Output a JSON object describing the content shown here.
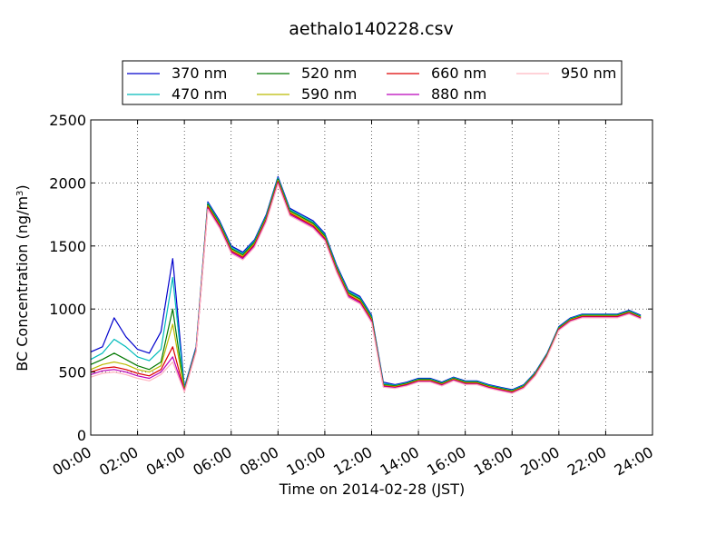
{
  "chart_data": {
    "type": "line",
    "title": "aethalo140228.csv",
    "xlabel": "Time on 2014-02-28 (JST)",
    "ylabel_main": "BC Concentration (ng/m",
    "ylabel_sup": "3",
    "ylabel_close": ")",
    "xlim_hours": [
      0,
      24
    ],
    "ylim": [
      0,
      2500
    ],
    "x_ticks": [
      {
        "hour": 0,
        "label": "00:00"
      },
      {
        "hour": 2,
        "label": "02:00"
      },
      {
        "hour": 4,
        "label": "04:00"
      },
      {
        "hour": 6,
        "label": "06:00"
      },
      {
        "hour": 8,
        "label": "08:00"
      },
      {
        "hour": 10,
        "label": "10:00"
      },
      {
        "hour": 12,
        "label": "12:00"
      },
      {
        "hour": 14,
        "label": "14:00"
      },
      {
        "hour": 16,
        "label": "16:00"
      },
      {
        "hour": 18,
        "label": "18:00"
      },
      {
        "hour": 20,
        "label": "20:00"
      },
      {
        "hour": 22,
        "label": "22:00"
      },
      {
        "hour": 24,
        "label": "24:00"
      }
    ],
    "y_ticks": [
      {
        "value": 0,
        "label": "0"
      },
      {
        "value": 500,
        "label": "500"
      },
      {
        "value": 1000,
        "label": "1000"
      },
      {
        "value": 1500,
        "label": "1500"
      },
      {
        "value": 2000,
        "label": "2000"
      },
      {
        "value": 2500,
        "label": "2500"
      }
    ],
    "grid": true,
    "legend_position": "top",
    "x_hours": [
      0,
      0.5,
      1,
      1.5,
      2,
      2.5,
      3,
      3.5,
      4,
      4.5,
      5,
      5.5,
      6,
      6.5,
      7,
      7.5,
      8,
      8.5,
      9,
      9.5,
      10,
      10.5,
      11,
      11.5,
      12,
      12.5,
      13,
      13.5,
      14,
      14.5,
      15,
      15.5,
      16,
      16.5,
      17,
      17.5,
      18,
      18.5,
      19,
      19.5,
      20,
      20.5,
      21,
      21.5,
      22,
      22.5,
      23,
      23.5
    ],
    "series": [
      {
        "name": "370 nm",
        "color": "#0000cc",
        "values": [
          660,
          700,
          930,
          780,
          680,
          650,
          820,
          1400,
          380,
          700,
          1850,
          1700,
          1500,
          1450,
          1550,
          1750,
          2050,
          1800,
          1750,
          1700,
          1600,
          1350,
          1150,
          1100,
          950,
          420,
          400,
          420,
          450,
          450,
          420,
          460,
          430,
          430,
          400,
          380,
          360,
          400,
          500,
          650,
          860,
          930,
          960,
          960,
          960,
          960,
          990,
          950
        ]
      },
      {
        "name": "470 nm",
        "color": "#00bbbb",
        "values": [
          600,
          650,
          760,
          700,
          620,
          590,
          680,
          1250,
          370,
          690,
          1840,
          1690,
          1490,
          1440,
          1540,
          1740,
          2040,
          1790,
          1740,
          1690,
          1590,
          1340,
          1140,
          1090,
          940,
          410,
          395,
          415,
          445,
          445,
          415,
          455,
          425,
          425,
          395,
          375,
          355,
          395,
          495,
          645,
          855,
          925,
          955,
          955,
          955,
          955,
          985,
          945
        ]
      },
      {
        "name": "520 nm",
        "color": "#007700",
        "values": [
          560,
          600,
          650,
          600,
          550,
          520,
          580,
          1000,
          360,
          680,
          1830,
          1680,
          1480,
          1430,
          1530,
          1730,
          2030,
          1780,
          1730,
          1680,
          1580,
          1330,
          1130,
          1080,
          930,
          400,
          390,
          410,
          440,
          440,
          410,
          450,
          420,
          420,
          390,
          370,
          350,
          390,
          490,
          640,
          850,
          920,
          950,
          950,
          950,
          950,
          980,
          940
        ]
      },
      {
        "name": "590 nm",
        "color": "#bbbb00",
        "values": [
          520,
          560,
          580,
          560,
          520,
          500,
          550,
          880,
          355,
          675,
          1820,
          1670,
          1470,
          1420,
          1520,
          1720,
          2020,
          1770,
          1720,
          1670,
          1570,
          1320,
          1120,
          1070,
          920,
          395,
          385,
          405,
          435,
          435,
          405,
          445,
          415,
          415,
          385,
          365,
          345,
          385,
          485,
          635,
          845,
          915,
          945,
          945,
          945,
          945,
          975,
          935
        ]
      },
      {
        "name": "660 nm",
        "color": "#dd0000",
        "values": [
          500,
          530,
          540,
          520,
          490,
          470,
          520,
          700,
          350,
          670,
          1810,
          1660,
          1460,
          1410,
          1510,
          1710,
          2010,
          1760,
          1710,
          1660,
          1560,
          1310,
          1110,
          1060,
          910,
          390,
          380,
          400,
          430,
          430,
          400,
          440,
          410,
          410,
          380,
          360,
          340,
          380,
          480,
          630,
          840,
          910,
          940,
          940,
          940,
          940,
          970,
          930
        ]
      },
      {
        "name": "880 nm",
        "color": "#bb00bb",
        "values": [
          480,
          510,
          520,
          500,
          470,
          450,
          500,
          620,
          345,
          665,
          1800,
          1650,
          1450,
          1400,
          1500,
          1700,
          2000,
          1750,
          1700,
          1650,
          1550,
          1300,
          1100,
          1050,
          900,
          385,
          375,
          395,
          425,
          425,
          395,
          435,
          405,
          405,
          375,
          355,
          335,
          375,
          475,
          625,
          835,
          905,
          935,
          935,
          935,
          935,
          965,
          925
        ]
      },
      {
        "name": "950 nm",
        "color": "#ffb6c1",
        "values": [
          460,
          490,
          500,
          480,
          450,
          430,
          480,
          580,
          340,
          660,
          1790,
          1640,
          1440,
          1390,
          1490,
          1690,
          1990,
          1740,
          1690,
          1640,
          1540,
          1290,
          1090,
          1040,
          890,
          380,
          370,
          390,
          420,
          420,
          390,
          430,
          400,
          400,
          370,
          350,
          330,
          370,
          470,
          620,
          830,
          900,
          930,
          930,
          930,
          930,
          960,
          920
        ]
      }
    ]
  }
}
